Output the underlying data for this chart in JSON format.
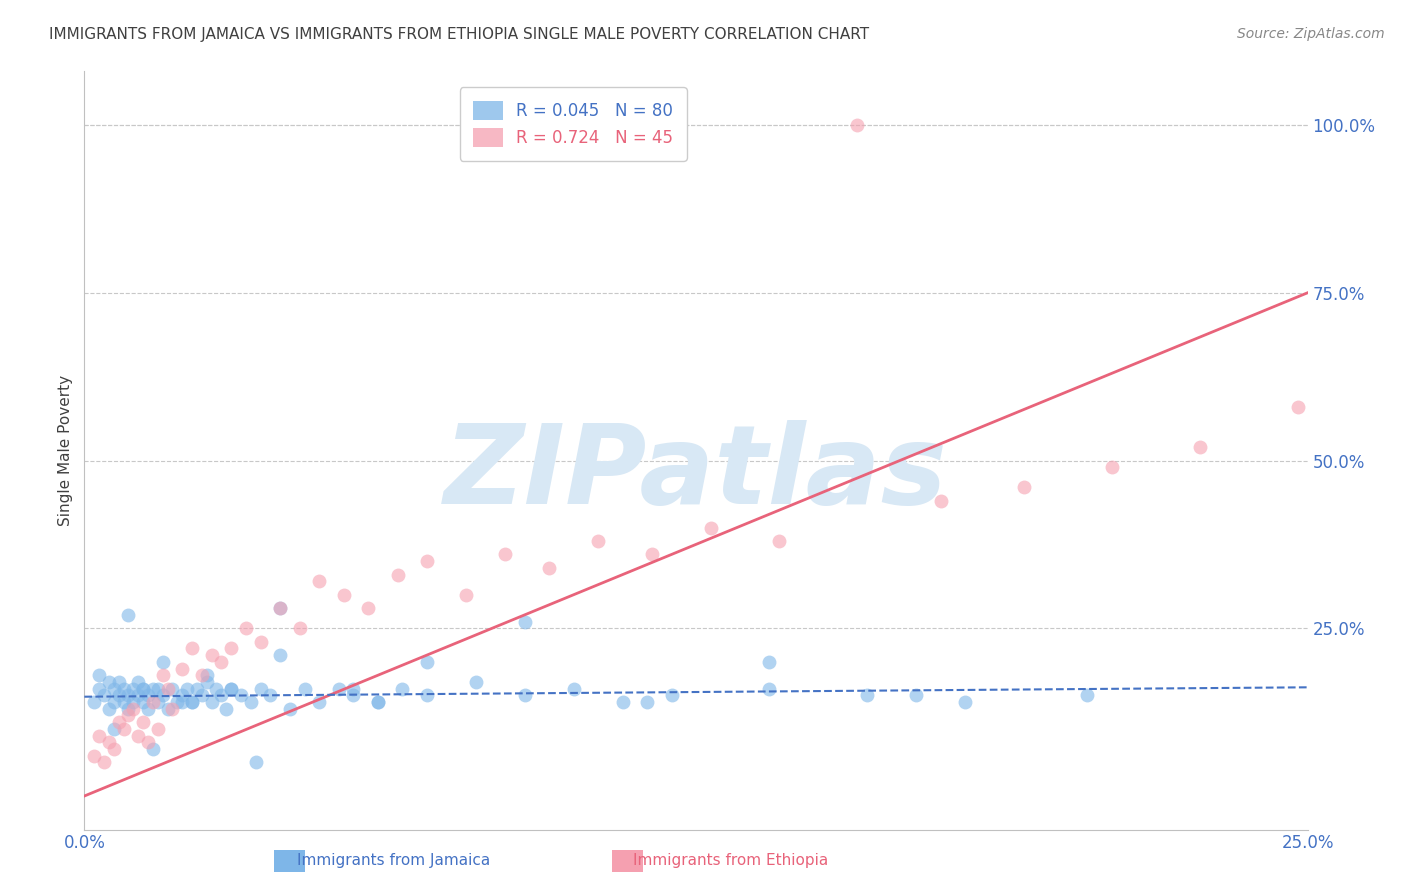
{
  "title": "IMMIGRANTS FROM JAMAICA VS IMMIGRANTS FROM ETHIOPIA SINGLE MALE POVERTY CORRELATION CHART",
  "source": "Source: ZipAtlas.com",
  "ylabel": "Single Male Poverty",
  "xlim": [
    0.0,
    0.25
  ],
  "ylim": [
    -0.05,
    1.08
  ],
  "xtick_positions": [
    0.0,
    0.25
  ],
  "xtick_labels": [
    "0.0%",
    "25.0%"
  ],
  "right_ytick_positions": [
    0.25,
    0.5,
    0.75,
    1.0
  ],
  "right_ytick_labels": [
    "25.0%",
    "50.0%",
    "75.0%",
    "100.0%"
  ],
  "color_jamaica": "#7EB6E8",
  "color_ethiopia": "#F5A0B0",
  "color_jamaica_line": "#4472C4",
  "color_ethiopia_line": "#E8637A",
  "color_axis_labels": "#4472C4",
  "color_title": "#404040",
  "color_source": "#888888",
  "color_grid": "#C8C8C8",
  "color_watermark": "#D8E8F5",
  "watermark_text": "ZIPatlas",
  "jamaica_scatter_x": [
    0.002,
    0.003,
    0.004,
    0.005,
    0.005,
    0.006,
    0.006,
    0.007,
    0.007,
    0.008,
    0.008,
    0.009,
    0.009,
    0.01,
    0.01,
    0.011,
    0.011,
    0.012,
    0.012,
    0.013,
    0.013,
    0.014,
    0.015,
    0.015,
    0.016,
    0.017,
    0.018,
    0.019,
    0.02,
    0.021,
    0.022,
    0.023,
    0.024,
    0.025,
    0.026,
    0.027,
    0.028,
    0.029,
    0.03,
    0.032,
    0.034,
    0.036,
    0.038,
    0.04,
    0.042,
    0.045,
    0.048,
    0.052,
    0.055,
    0.06,
    0.065,
    0.07,
    0.08,
    0.09,
    0.1,
    0.11,
    0.12,
    0.14,
    0.16,
    0.18,
    0.003,
    0.006,
    0.009,
    0.012,
    0.016,
    0.02,
    0.025,
    0.03,
    0.04,
    0.055,
    0.07,
    0.09,
    0.115,
    0.14,
    0.17,
    0.205,
    0.014,
    0.022,
    0.035,
    0.06
  ],
  "jamaica_scatter_y": [
    0.14,
    0.16,
    0.15,
    0.13,
    0.17,
    0.14,
    0.16,
    0.15,
    0.17,
    0.14,
    0.16,
    0.15,
    0.13,
    0.16,
    0.14,
    0.17,
    0.15,
    0.14,
    0.16,
    0.15,
    0.13,
    0.16,
    0.14,
    0.16,
    0.15,
    0.13,
    0.16,
    0.14,
    0.15,
    0.16,
    0.14,
    0.16,
    0.15,
    0.17,
    0.14,
    0.16,
    0.15,
    0.13,
    0.16,
    0.15,
    0.14,
    0.16,
    0.15,
    0.28,
    0.13,
    0.16,
    0.14,
    0.16,
    0.15,
    0.14,
    0.16,
    0.15,
    0.17,
    0.15,
    0.16,
    0.14,
    0.15,
    0.16,
    0.15,
    0.14,
    0.18,
    0.1,
    0.27,
    0.16,
    0.2,
    0.14,
    0.18,
    0.16,
    0.21,
    0.16,
    0.2,
    0.26,
    0.14,
    0.2,
    0.15,
    0.15,
    0.07,
    0.14,
    0.05,
    0.14
  ],
  "ethiopia_scatter_x": [
    0.002,
    0.003,
    0.004,
    0.005,
    0.006,
    0.007,
    0.008,
    0.009,
    0.01,
    0.011,
    0.012,
    0.013,
    0.014,
    0.015,
    0.016,
    0.017,
    0.018,
    0.02,
    0.022,
    0.024,
    0.026,
    0.028,
    0.03,
    0.033,
    0.036,
    0.04,
    0.044,
    0.048,
    0.053,
    0.058,
    0.064,
    0.07,
    0.078,
    0.086,
    0.095,
    0.105,
    0.116,
    0.128,
    0.142,
    0.158,
    0.175,
    0.192,
    0.21,
    0.228,
    0.248
  ],
  "ethiopia_scatter_y": [
    0.06,
    0.09,
    0.05,
    0.08,
    0.07,
    0.11,
    0.1,
    0.12,
    0.13,
    0.09,
    0.11,
    0.08,
    0.14,
    0.1,
    0.18,
    0.16,
    0.13,
    0.19,
    0.22,
    0.18,
    0.21,
    0.2,
    0.22,
    0.25,
    0.23,
    0.28,
    0.25,
    0.32,
    0.3,
    0.28,
    0.33,
    0.35,
    0.3,
    0.36,
    0.34,
    0.38,
    0.36,
    0.4,
    0.38,
    1.0,
    0.44,
    0.46,
    0.49,
    0.52,
    0.58
  ],
  "jamaica_line_x": [
    0.0,
    0.25
  ],
  "jamaica_line_y": [
    0.148,
    0.162
  ],
  "ethiopia_line_x": [
    0.0,
    0.25
  ],
  "ethiopia_line_y": [
    0.0,
    0.75
  ],
  "scatter_alpha": 0.6,
  "scatter_size": 100
}
